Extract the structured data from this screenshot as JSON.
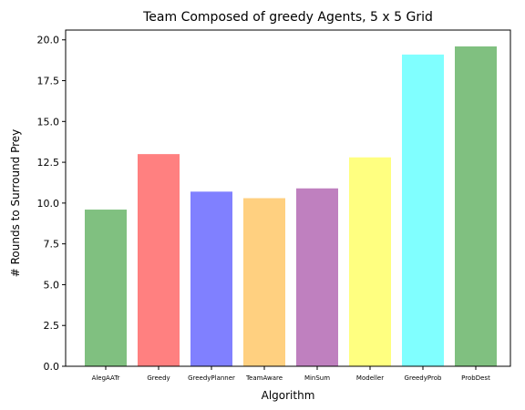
{
  "chart_data": {
    "type": "bar",
    "title": "Team Composed of greedy Agents, 5 x 5 Grid",
    "xlabel": "Algorithm",
    "ylabel": "# Rounds to Surround Prey",
    "categories": [
      "AlegAATr",
      "Greedy",
      "GreedyPlanner",
      "TeamAware",
      "MinSum",
      "Modeller",
      "GreedyProb",
      "ProbDest"
    ],
    "values": [
      9.6,
      13.0,
      10.7,
      10.3,
      10.9,
      12.8,
      19.1,
      19.6
    ],
    "colors": [
      "#80c080",
      "#ff8080",
      "#8080ff",
      "#ffd080",
      "#bf80bf",
      "#ffff80",
      "#80ffff",
      "#80c080"
    ],
    "ylim": [
      0,
      20.6
    ],
    "yticks": [
      0.0,
      2.5,
      5.0,
      7.5,
      10.0,
      12.5,
      15.0,
      17.5,
      20.0
    ],
    "ytick_labels": [
      "0.0",
      "2.5",
      "5.0",
      "7.5",
      "10.0",
      "12.5",
      "15.0",
      "17.5",
      "20.0"
    ],
    "grid": false,
    "legend": "none"
  }
}
